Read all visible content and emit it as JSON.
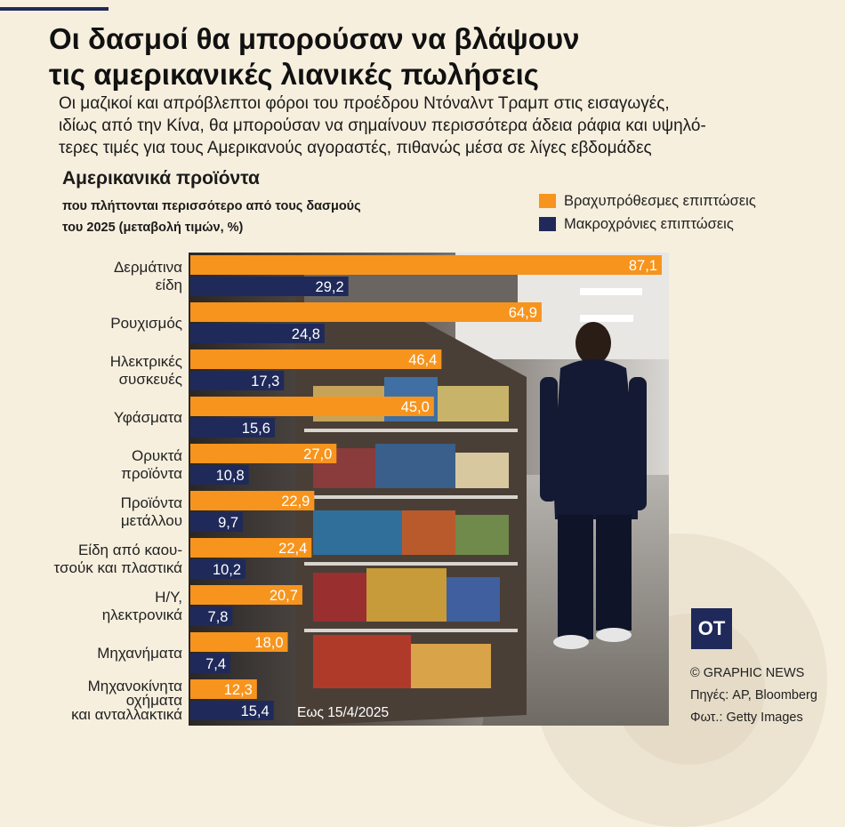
{
  "header": {
    "title_lines": [
      "Οι δασμοί θα μπορούσαν να βλάψουν",
      "τις αμερικανικές λιανικές πωλήσεις"
    ],
    "subtitle_lines": [
      "Οι μαζικοί και απρόβλεπτοι φόροι του προέδρου Ντόναλντ Τραμπ στις εισαγωγές,",
      "ιδίως από την Κίνα, θα μπορούσαν να σημαίνουν περισσότερα άδεια ράφια και υψηλό-",
      "τερες τιμές για τους Αμερικανούς αγοραστές, πιθανώς μέσα σε λίγες εβδομάδες"
    ]
  },
  "chart_heading": {
    "title": "Αμερικανικά προϊόντα",
    "subtitle_lines": [
      "που πλήττονται περισσότερο από τους δασμούς",
      "του 2025 (μεταβολή τιμών, %)"
    ]
  },
  "colors": {
    "short_term": "#f7941d",
    "long_term": "#1f2a5a",
    "background": "#f7efde"
  },
  "chart_data": {
    "type": "bar",
    "orientation": "horizontal",
    "categories": [
      [
        "Δερμάτινα",
        "είδη"
      ],
      [
        "Ρουχισμός"
      ],
      [
        "Ηλεκτρικές",
        "συσκευές"
      ],
      [
        "Υφάσματα"
      ],
      [
        "Ορυκτά",
        "προϊόντα"
      ],
      [
        "Προϊόντα",
        "μετάλλου"
      ],
      [
        "Είδη από καου-",
        "τσούκ και πλαστικά"
      ],
      [
        "Η/Υ,",
        "ηλεκτρονικά"
      ],
      [
        "Μηχανήματα"
      ],
      [
        "Μηχανοκίνητα",
        "οχήματα",
        "και ανταλλακτικά"
      ]
    ],
    "series": [
      {
        "name": "Βραχυπρόθεσμες επιπτώσεις",
        "values": [
          87.1,
          64.9,
          46.4,
          45.0,
          27.0,
          22.9,
          22.4,
          20.7,
          18.0,
          12.3
        ]
      },
      {
        "name": "Μακροχρόνιες επιπτώσεις",
        "values": [
          29.2,
          24.8,
          17.3,
          15.6,
          10.8,
          9.7,
          10.2,
          7.8,
          7.4,
          15.4
        ]
      }
    ],
    "legend": "top-right",
    "note": "Εως 15/4/2025"
  },
  "logo": "OT",
  "credits": [
    "© GRAPHIC NEWS",
    "Πηγές: AP, Bloomberg",
    "Φωτ.: Getty Images"
  ]
}
